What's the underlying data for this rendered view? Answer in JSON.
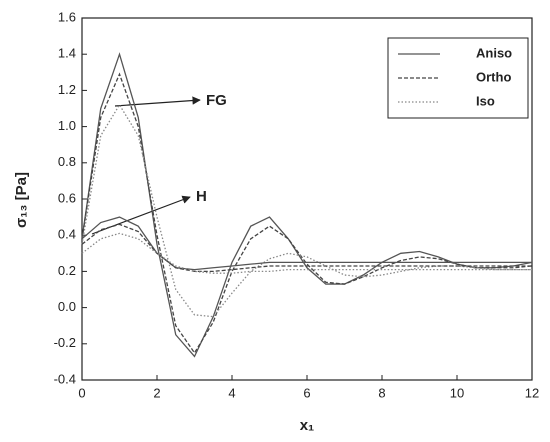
{
  "chart_data": {
    "type": "line",
    "xlabel": "x₁",
    "ylabel": "σ₁₃ [Pa]",
    "xlim": [
      0,
      12
    ],
    "xticks": [
      0,
      2,
      4,
      6,
      8,
      10,
      12
    ],
    "ylim": [
      -0.4,
      1.6
    ],
    "yticks": [
      -0.4,
      -0.2,
      {
        "value": 0,
        "label": "0.0"
      },
      0.2,
      0.4,
      0.6,
      0.8,
      {
        "value": 1,
        "label": "1.0"
      },
      1.2,
      1.4,
      1.6
    ],
    "legend": "upper right",
    "styles": [
      {
        "name": "Aniso",
        "dash": "solid",
        "color": "#555555"
      },
      {
        "name": "Ortho",
        "dash": "dashed",
        "color": "#444444"
      },
      {
        "name": "Iso",
        "dash": "dotted",
        "color": "#888888"
      }
    ],
    "x": [
      0,
      0.5,
      1,
      1.5,
      2,
      2.5,
      3,
      3.5,
      4,
      4.5,
      5,
      5.5,
      6,
      6.5,
      7,
      7.5,
      8,
      8.5,
      9,
      9.5,
      10,
      10.5,
      11,
      11.5,
      12
    ],
    "groups": [
      {
        "label": "FG",
        "series": [
          {
            "values": [
              0.38,
              1.1,
              1.4,
              1.05,
              0.35,
              -0.15,
              -0.27,
              -0.05,
              0.25,
              0.45,
              0.5,
              0.38,
              0.22,
              0.13,
              0.13,
              0.18,
              0.25,
              0.3,
              0.31,
              0.28,
              0.24,
              0.22,
              0.22,
              0.23,
              0.25
            ]
          },
          {
            "values": [
              0.38,
              1.05,
              1.29,
              1.0,
              0.4,
              -0.1,
              -0.25,
              -0.08,
              0.2,
              0.38,
              0.45,
              0.38,
              0.24,
              0.14,
              0.13,
              0.17,
              0.22,
              0.26,
              0.28,
              0.27,
              0.24,
              0.22,
              0.22,
              0.22,
              0.23
            ]
          },
          {
            "values": [
              0.35,
              0.95,
              1.12,
              0.95,
              0.5,
              0.1,
              -0.04,
              -0.05,
              0.08,
              0.2,
              0.27,
              0.3,
              0.28,
              0.23,
              0.18,
              0.17,
              0.18,
              0.2,
              0.22,
              0.23,
              0.23,
              0.22,
              0.21,
              0.21,
              0.21
            ]
          }
        ]
      },
      {
        "label": "H",
        "series": [
          {
            "values": [
              0.38,
              0.47,
              0.5,
              0.45,
              0.3,
              0.22,
              0.21,
              0.22,
              0.23,
              0.24,
              0.25,
              0.25,
              0.25,
              0.25,
              0.25,
              0.25,
              0.25,
              0.25,
              0.25,
              0.25,
              0.25,
              0.25,
              0.25,
              0.25,
              0.25
            ]
          },
          {
            "values": [
              0.35,
              0.43,
              0.46,
              0.42,
              0.3,
              0.22,
              0.2,
              0.2,
              0.21,
              0.22,
              0.23,
              0.23,
              0.23,
              0.23,
              0.23,
              0.23,
              0.23,
              0.23,
              0.23,
              0.23,
              0.23,
              0.23,
              0.23,
              0.23,
              0.23
            ]
          },
          {
            "values": [
              0.3,
              0.38,
              0.41,
              0.38,
              0.3,
              0.23,
              0.2,
              0.19,
              0.19,
              0.2,
              0.2,
              0.21,
              0.21,
              0.21,
              0.21,
              0.21,
              0.21,
              0.21,
              0.21,
              0.21,
              0.21,
              0.21,
              0.21,
              0.21,
              0.21
            ]
          }
        ]
      }
    ]
  }
}
